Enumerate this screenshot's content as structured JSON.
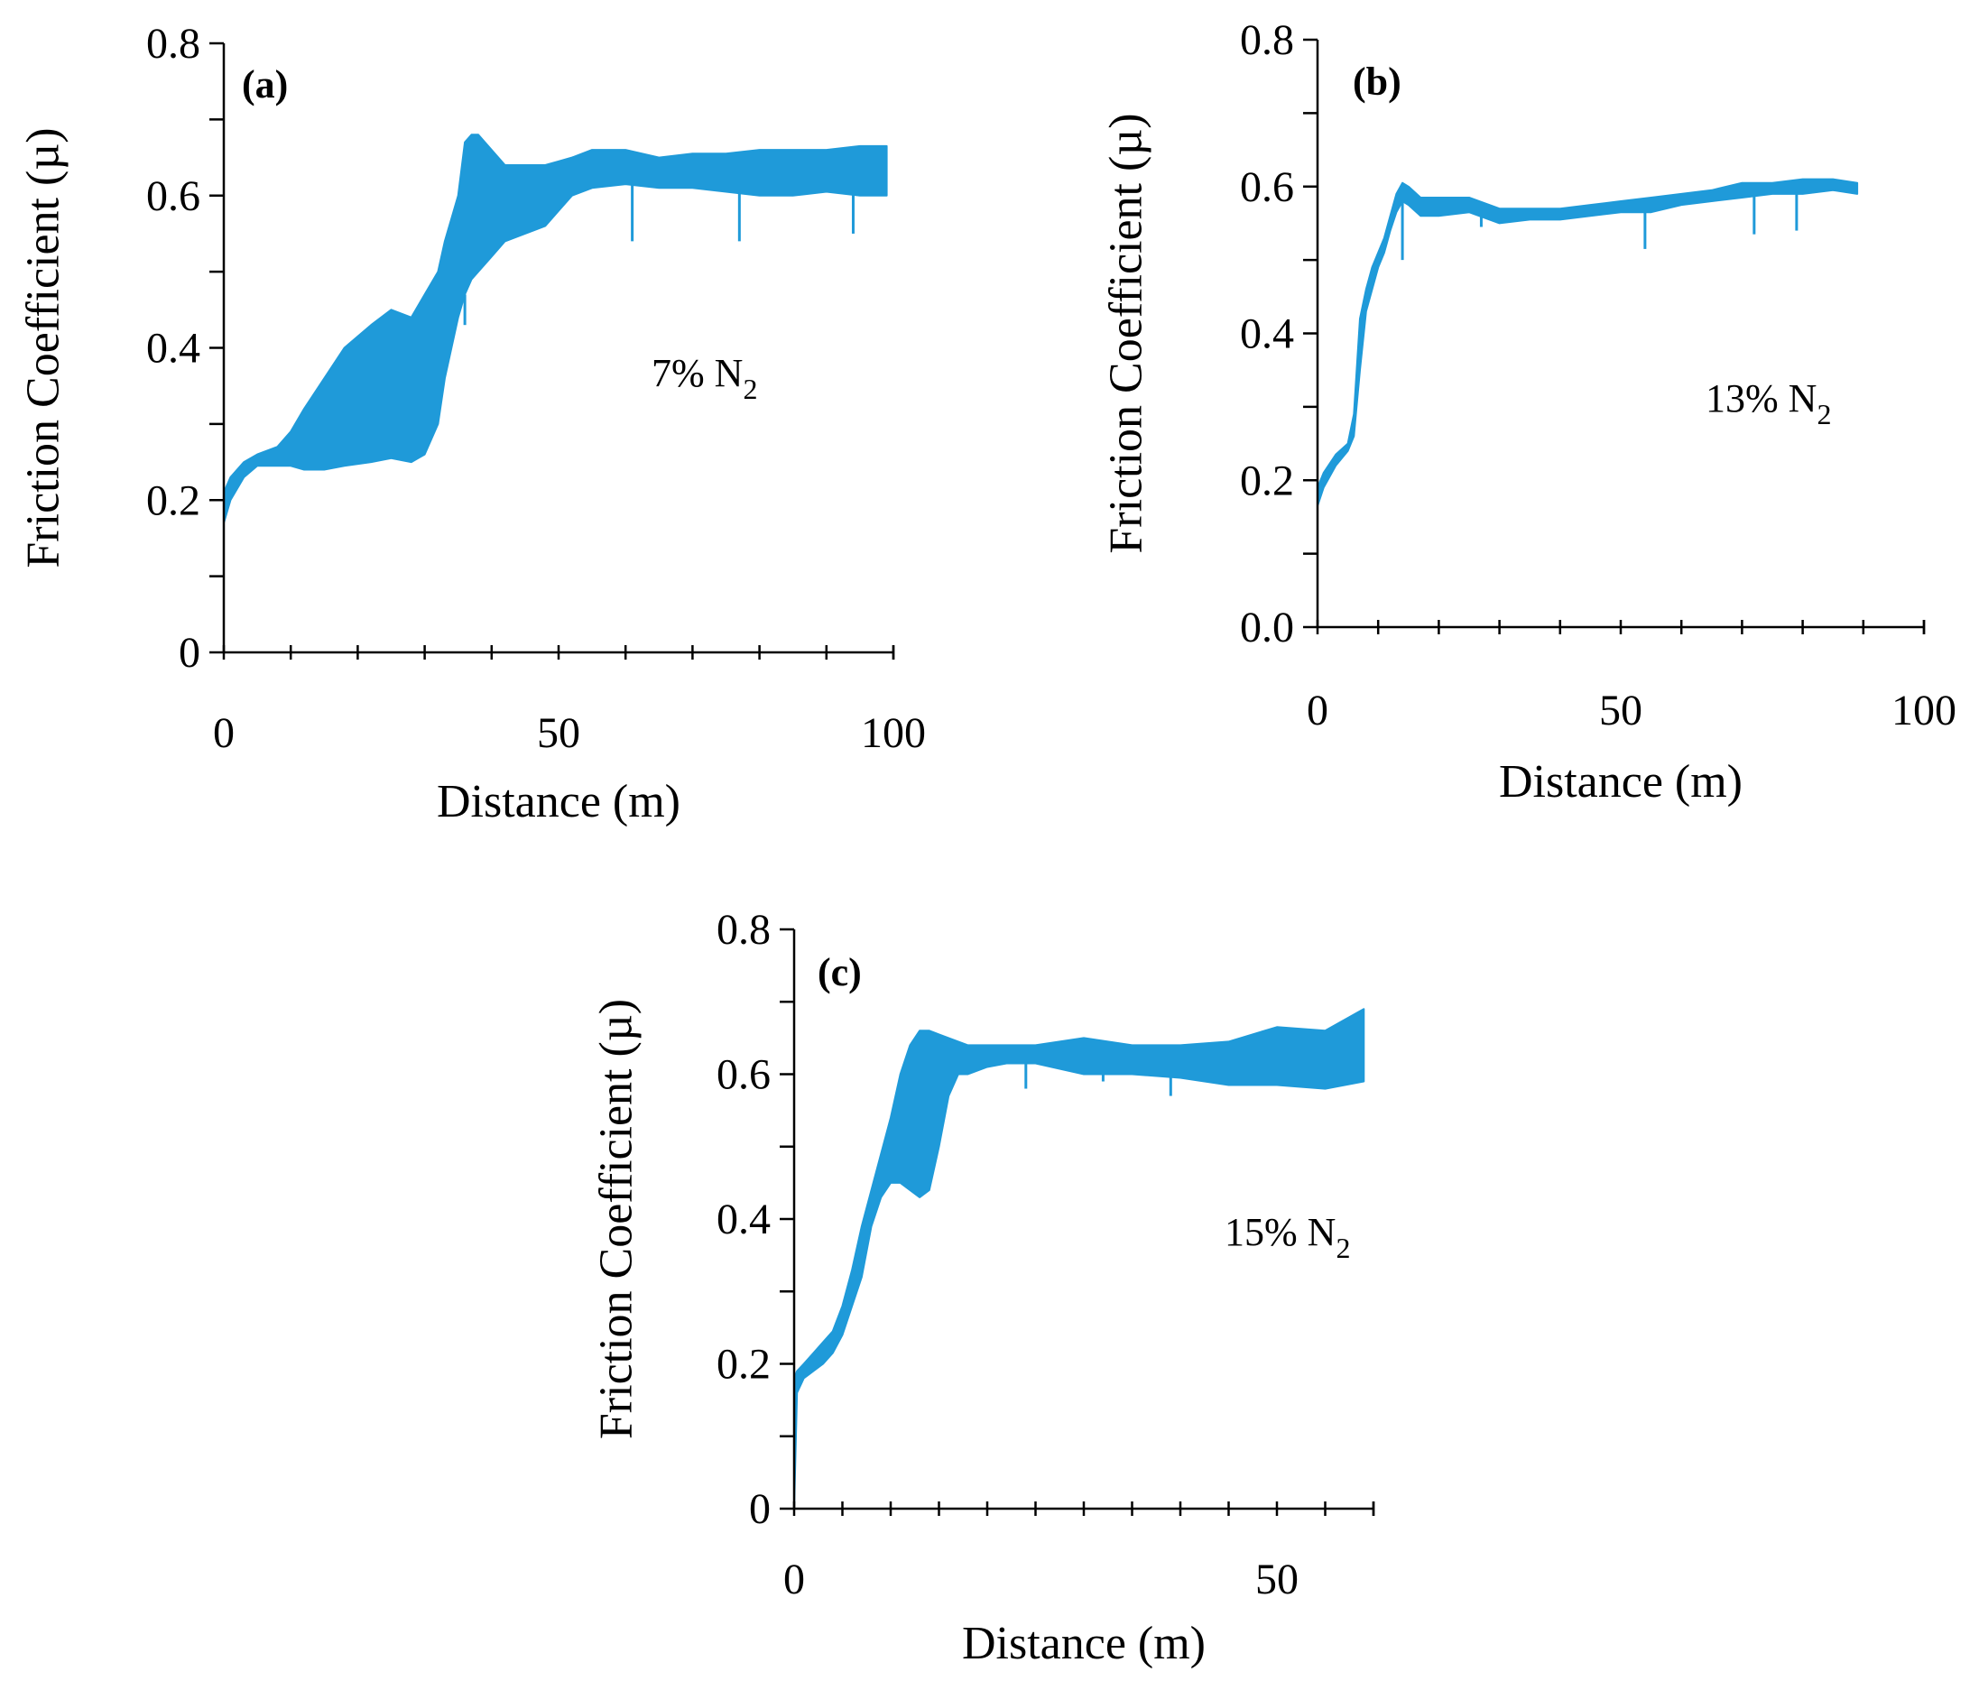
{
  "figure": {
    "series_color": "#1f9ad9"
  },
  "chart_data": [
    {
      "type": "line",
      "panel_label": "(a)",
      "annotation": "7% N",
      "annotation_subscript": "2",
      "xlabel": "Distance (m)",
      "ylabel": "Friction Coefficient (µ)",
      "xlim": [
        0,
        100
      ],
      "ylim": [
        0,
        0.8
      ],
      "x_ticks": [
        "0",
        "50",
        "100"
      ],
      "x_tick_values": [
        0,
        50,
        100
      ],
      "x_minor_step": 10,
      "y_ticks": [
        "0",
        "0.2",
        "0.4",
        "0.6",
        "0.8"
      ],
      "y_tick_values": [
        0,
        0.2,
        0.4,
        0.6,
        0.8
      ],
      "y_minor_step": 0.1,
      "series": [
        {
          "name": "7% N2",
          "x": [
            0,
            1,
            3,
            5,
            8,
            10,
            12,
            15,
            18,
            22,
            25,
            28,
            30,
            32,
            33,
            34,
            35,
            36,
            37,
            38,
            40,
            42,
            45,
            48,
            50,
            52,
            55,
            60,
            65,
            70,
            75,
            80,
            85,
            90,
            95,
            99
          ],
          "upper": [
            0.21,
            0.23,
            0.25,
            0.26,
            0.27,
            0.29,
            0.32,
            0.36,
            0.4,
            0.43,
            0.45,
            0.44,
            0.47,
            0.5,
            0.54,
            0.57,
            0.6,
            0.67,
            0.68,
            0.68,
            0.66,
            0.64,
            0.64,
            0.64,
            0.645,
            0.65,
            0.66,
            0.66,
            0.65,
            0.655,
            0.655,
            0.66,
            0.66,
            0.66,
            0.665,
            0.665
          ],
          "lower": [
            0.17,
            0.2,
            0.23,
            0.245,
            0.245,
            0.245,
            0.24,
            0.24,
            0.245,
            0.25,
            0.255,
            0.25,
            0.26,
            0.3,
            0.36,
            0.4,
            0.44,
            0.47,
            0.49,
            0.5,
            0.52,
            0.54,
            0.55,
            0.56,
            0.58,
            0.6,
            0.61,
            0.615,
            0.61,
            0.61,
            0.605,
            0.6,
            0.6,
            0.605,
            0.6,
            0.6
          ],
          "spikes": [
            {
              "x": 61,
              "y": 0.54
            },
            {
              "x": 77,
              "y": 0.54
            },
            {
              "x": 94,
              "y": 0.55
            },
            {
              "x": 36,
              "y": 0.43
            }
          ]
        }
      ]
    },
    {
      "type": "line",
      "panel_label": "(b)",
      "annotation": "13% N",
      "annotation_subscript": "2",
      "xlabel": "Distance (m)",
      "ylabel": "Friction Coefficient (µ)",
      "xlim": [
        0,
        100
      ],
      "ylim": [
        0,
        0.8
      ],
      "x_ticks": [
        "0",
        "50",
        "100"
      ],
      "x_tick_values": [
        0,
        50,
        100
      ],
      "x_minor_step": 10,
      "y_ticks": [
        "0.0",
        "0.2",
        "0.4",
        "0.6",
        "0.8"
      ],
      "y_tick_values": [
        0,
        0.2,
        0.4,
        0.6,
        0.8
      ],
      "y_minor_step": 0.1,
      "series": [
        {
          "name": "13% N2",
          "x": [
            0,
            1,
            3,
            5,
            6,
            7,
            8,
            9,
            10,
            11,
            12,
            13,
            14,
            15,
            17,
            20,
            25,
            30,
            35,
            40,
            45,
            50,
            55,
            60,
            65,
            70,
            75,
            80,
            85,
            89
          ],
          "upper": [
            0.19,
            0.21,
            0.235,
            0.25,
            0.29,
            0.42,
            0.46,
            0.49,
            0.51,
            0.53,
            0.56,
            0.59,
            0.605,
            0.6,
            0.585,
            0.585,
            0.585,
            0.57,
            0.57,
            0.57,
            0.575,
            0.58,
            0.585,
            0.59,
            0.595,
            0.605,
            0.605,
            0.61,
            0.61,
            0.605
          ],
          "lower": [
            0.165,
            0.19,
            0.22,
            0.24,
            0.26,
            0.35,
            0.43,
            0.46,
            0.49,
            0.51,
            0.54,
            0.565,
            0.58,
            0.575,
            0.56,
            0.56,
            0.565,
            0.55,
            0.555,
            0.555,
            0.56,
            0.565,
            0.565,
            0.575,
            0.58,
            0.585,
            0.59,
            0.59,
            0.595,
            0.59
          ],
          "spikes": [
            {
              "x": 14,
              "y": 0.5
            },
            {
              "x": 54,
              "y": 0.515
            },
            {
              "x": 72,
              "y": 0.535
            },
            {
              "x": 79,
              "y": 0.54
            },
            {
              "x": 27,
              "y": 0.545
            }
          ]
        }
      ]
    },
    {
      "type": "line",
      "panel_label": "(c)",
      "annotation": "15% N",
      "annotation_subscript": "2",
      "xlabel": "Distance (m)",
      "ylabel": "Friction Coefficient (µ)",
      "xlim": [
        0,
        60
      ],
      "ylim": [
        0,
        0.8
      ],
      "x_ticks": [
        "0",
        "50"
      ],
      "x_tick_values": [
        0,
        50
      ],
      "x_minor_step": 5,
      "y_ticks": [
        "0",
        "0.2",
        "0.4",
        "0.6",
        "0.8"
      ],
      "y_tick_values": [
        0,
        0.2,
        0.4,
        0.6,
        0.8
      ],
      "y_minor_step": 0.1,
      "series": [
        {
          "name": "15% N2",
          "x": [
            0,
            0.3,
            1,
            2,
            3,
            4,
            5,
            6,
            7,
            8,
            9,
            10,
            11,
            12,
            13,
            14,
            15,
            16,
            17,
            18,
            20,
            22,
            25,
            30,
            35,
            40,
            45,
            50,
            55,
            59
          ],
          "upper": [
            0.18,
            0.19,
            0.2,
            0.215,
            0.23,
            0.245,
            0.28,
            0.33,
            0.39,
            0.44,
            0.49,
            0.54,
            0.6,
            0.64,
            0.66,
            0.66,
            0.655,
            0.65,
            0.645,
            0.64,
            0.64,
            0.64,
            0.64,
            0.65,
            0.64,
            0.64,
            0.645,
            0.665,
            0.66,
            0.69
          ],
          "lower": [
            0.0,
            0.16,
            0.18,
            0.19,
            0.2,
            0.215,
            0.24,
            0.28,
            0.32,
            0.39,
            0.43,
            0.45,
            0.45,
            0.44,
            0.43,
            0.44,
            0.5,
            0.57,
            0.6,
            0.6,
            0.61,
            0.615,
            0.615,
            0.6,
            0.6,
            0.595,
            0.585,
            0.585,
            0.58,
            0.59
          ],
          "spikes": [
            {
              "x": 24,
              "y": 0.58
            },
            {
              "x": 32,
              "y": 0.59
            },
            {
              "x": 39,
              "y": 0.57
            }
          ]
        }
      ]
    }
  ]
}
